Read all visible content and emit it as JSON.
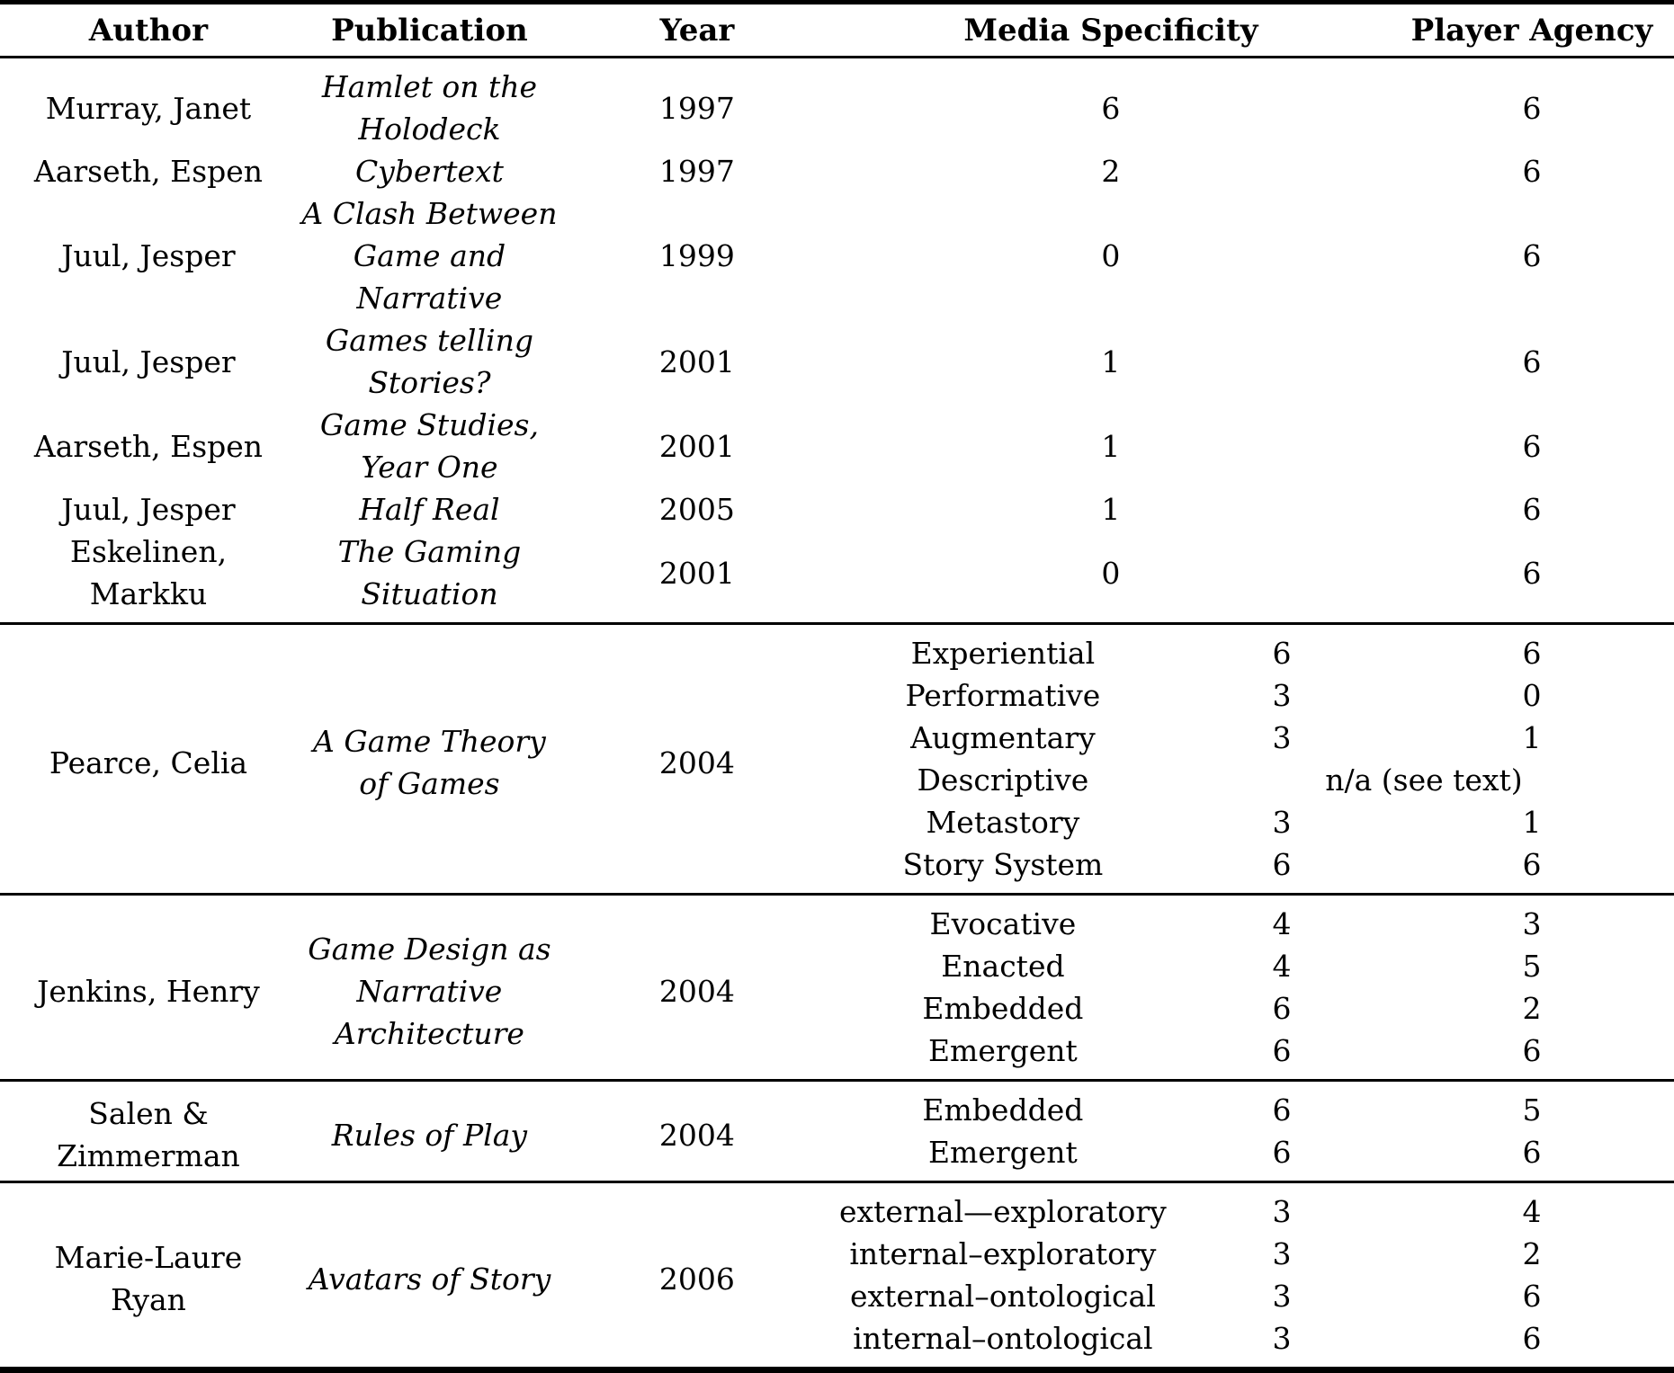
{
  "table": {
    "headers": {
      "author": "Author",
      "publication": "Publication",
      "year": "Year",
      "media_specificity": "Media Specificity",
      "player_agency": "Player Agency"
    },
    "simple_rows": [
      {
        "author": "Murray, Janet",
        "publication": "Hamlet on the\nHolodeck",
        "year": "1997",
        "media_specificity": "6",
        "player_agency": "6"
      },
      {
        "author": "Aarseth, Espen",
        "publication": "Cybertext",
        "year": "1997",
        "media_specificity": "2",
        "player_agency": "6"
      },
      {
        "author": "Juul, Jesper",
        "publication": "A Clash Between\nGame and\nNarrative",
        "year": "1999",
        "media_specificity": "0",
        "player_agency": "6"
      },
      {
        "author": "Juul, Jesper",
        "publication": "Games telling\nStories?",
        "year": "2001",
        "media_specificity": "1",
        "player_agency": "6"
      },
      {
        "author": "Aarseth, Espen",
        "publication": "Game Studies,\nYear One",
        "year": "2001",
        "media_specificity": "1",
        "player_agency": "6"
      },
      {
        "author": "Juul, Jesper",
        "publication": "Half Real",
        "year": "2005",
        "media_specificity": "1",
        "player_agency": "6"
      },
      {
        "author": "Eskelinen,\nMarkku",
        "publication": "The Gaming\nSituation",
        "year": "2001",
        "media_specificity": "0",
        "player_agency": "6"
      }
    ],
    "grouped_rows": [
      {
        "author": "Pearce, Celia",
        "publication": "A Game Theory\nof Games",
        "year": "2004",
        "subrows": [
          {
            "label": "Experiential",
            "media_specificity": "6",
            "player_agency": "6"
          },
          {
            "label": "Performative",
            "media_specificity": "3",
            "player_agency": "0"
          },
          {
            "label": "Augmentary",
            "media_specificity": "3",
            "player_agency": "1"
          },
          {
            "label": "Descriptive",
            "span_note": "n/a (see text)"
          },
          {
            "label": "Metastory",
            "media_specificity": "3",
            "player_agency": "1"
          },
          {
            "label": "Story System",
            "media_specificity": "6",
            "player_agency": "6"
          }
        ]
      },
      {
        "author": "Jenkins, Henry",
        "publication": "Game Design as\nNarrative\nArchitecture",
        "year": "2004",
        "subrows": [
          {
            "label": "Evocative",
            "media_specificity": "4",
            "player_agency": "3"
          },
          {
            "label": "Enacted",
            "media_specificity": "4",
            "player_agency": "5"
          },
          {
            "label": "Embedded",
            "media_specificity": "6",
            "player_agency": "2"
          },
          {
            "label": "Emergent",
            "media_specificity": "6",
            "player_agency": "6"
          }
        ]
      },
      {
        "author": "Salen &\nZimmerman",
        "publication": "Rules of Play",
        "year": "2004",
        "subrows": [
          {
            "label": "Embedded",
            "media_specificity": "6",
            "player_agency": "5"
          },
          {
            "label": "Emergent",
            "media_specificity": "6",
            "player_agency": "6"
          }
        ]
      },
      {
        "author": "Marie-Laure\nRyan",
        "publication": "Avatars of Story",
        "year": "2006",
        "subrows": [
          {
            "label": "external—exploratory",
            "media_specificity": "3",
            "player_agency": "4"
          },
          {
            "label": "internal–exploratory",
            "media_specificity": "3",
            "player_agency": "2"
          },
          {
            "label": "external–ontological",
            "media_specificity": "3",
            "player_agency": "6"
          },
          {
            "label": "internal–ontological",
            "media_specificity": "3",
            "player_agency": "6"
          }
        ]
      }
    ],
    "colors": {
      "text": "#000000",
      "background": "#ffffff",
      "rule": "#000000"
    }
  }
}
